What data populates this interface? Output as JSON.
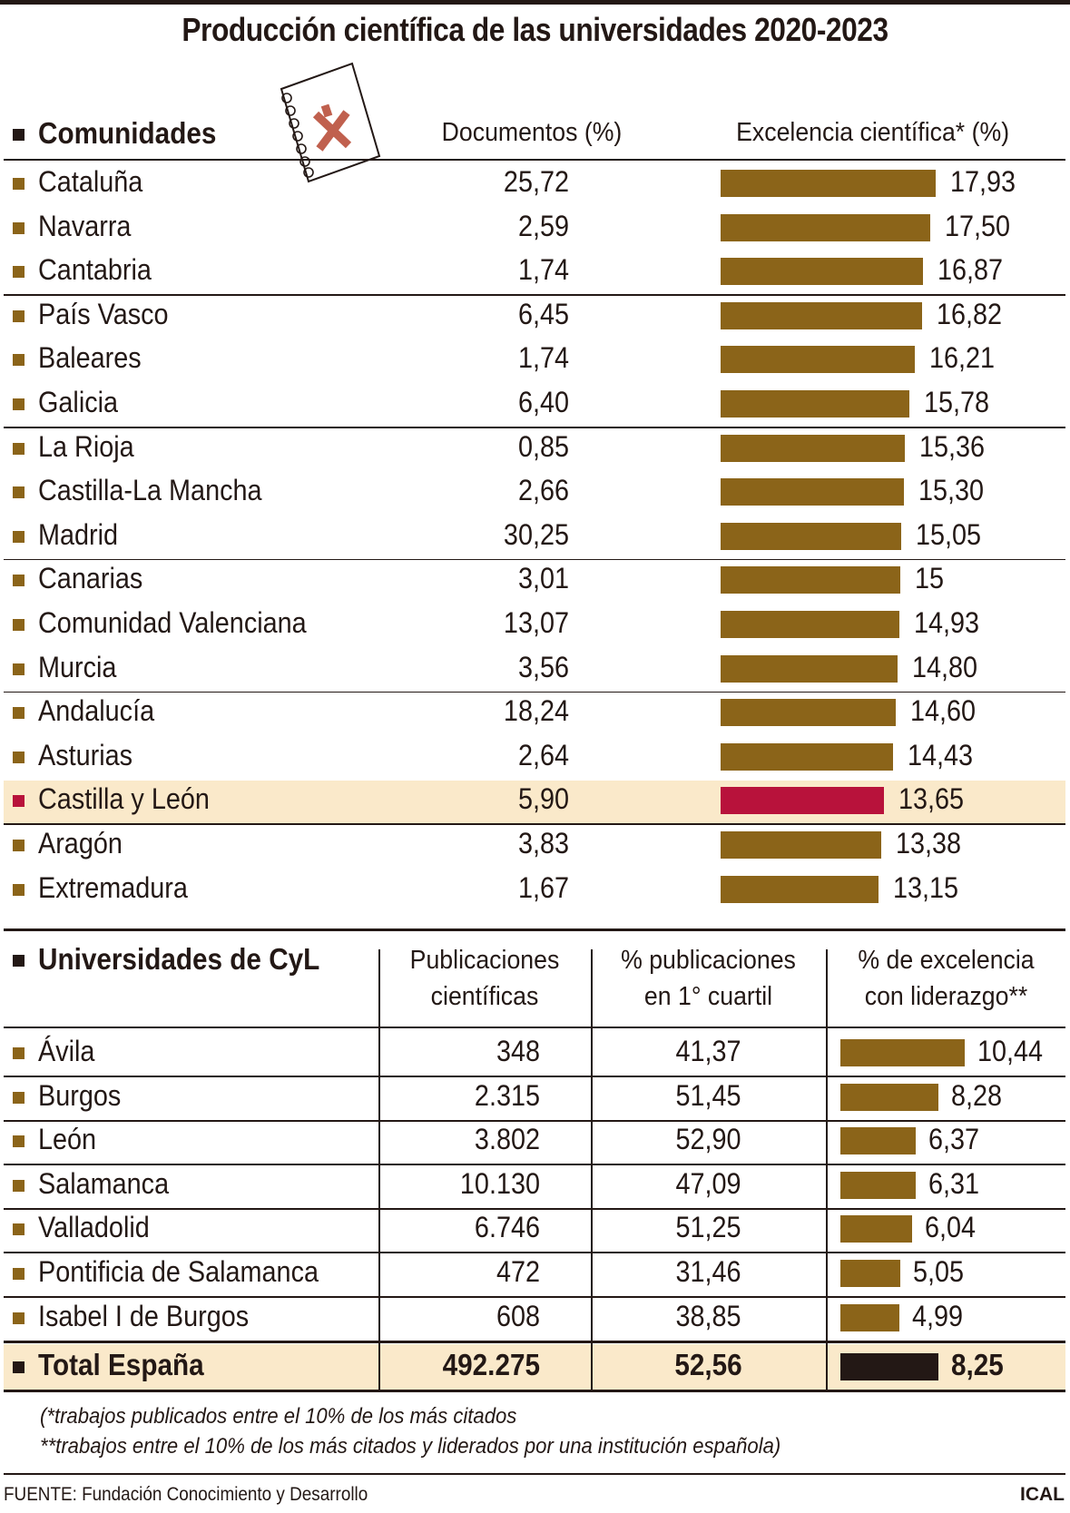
{
  "title": "Producción científica de las universidades 2020-2023",
  "colors": {
    "bar": "#8b6419",
    "highlight_bar": "#b8123b",
    "highlight_row": "#fae9ca",
    "total_bar": "#231815",
    "text": "#231815",
    "logo": "#c0604e"
  },
  "icon": "notebook-with-castilla-cross-icon",
  "chart_data": [
    {
      "type": "bar",
      "orientation": "horizontal",
      "headers": {
        "group": "Comunidades",
        "documents": "Documentos (%)",
        "excellence": "Excelencia científica* (%)"
      },
      "categories": [
        "Cataluña",
        "Navarra",
        "Cantabria",
        "País Vasco",
        "Baleares",
        "Galicia",
        "La Rioja",
        "Castilla-La Mancha",
        "Madrid",
        "Canarias",
        "Comunidad Valenciana",
        "Murcia",
        "Andalucía",
        "Asturias",
        "Castilla y León",
        "Aragón",
        "Extremadura"
      ],
      "documents": [
        "25,72",
        "2,59",
        "1,74",
        "6,45",
        "1,74",
        "6,40",
        "0,85",
        "2,66",
        "30,25",
        "3,01",
        "13,07",
        "3,56",
        "18,24",
        "2,64",
        "5,90",
        "3,83",
        "1,67"
      ],
      "excellence_labels": [
        "17,93",
        "17,50",
        "16,87",
        "16,82",
        "16,21",
        "15,78",
        "15,36",
        "15,30",
        "15,05",
        "15",
        "14,93",
        "14,80",
        "14,60",
        "14,43",
        "13,65",
        "13,38",
        "13,15"
      ],
      "values": [
        17.93,
        17.5,
        16.87,
        16.82,
        16.21,
        15.78,
        15.36,
        15.3,
        15.05,
        15,
        14.93,
        14.8,
        14.6,
        14.43,
        13.65,
        13.38,
        13.15
      ],
      "highlight": "Castilla y León"
    },
    {
      "type": "table",
      "headers": {
        "group": "Universidades de CyL",
        "pubs": [
          "Publicaciones",
          "científicas"
        ],
        "q1": [
          "% publicaciones",
          "en 1° cuartil"
        ],
        "lead": [
          "% de excelencia",
          "con liderazgo**"
        ]
      },
      "categories": [
        "Ávila",
        "Burgos",
        "León",
        "Salamanca",
        "Valladolid",
        "Pontificia de Salamanca",
        "Isabel I de Burgos"
      ],
      "pubs": [
        "348",
        "2.315",
        "3.802",
        "10.130",
        "6.746",
        "472",
        "608"
      ],
      "q1": [
        "41,37",
        "51,45",
        "52,90",
        "47,09",
        "51,25",
        "31,46",
        "38,85"
      ],
      "lead_labels": [
        "10,44",
        "8,28",
        "6,37",
        "6,31",
        "6,04",
        "5,05",
        "4,99"
      ],
      "values": [
        10.44,
        8.28,
        6.37,
        6.31,
        6.04,
        5.05,
        4.99
      ],
      "total": {
        "label": "Total España",
        "pubs": "492.275",
        "q1": "52,56",
        "lead_label": "8,25",
        "value": 8.25
      }
    }
  ],
  "footnotes": [
    "(*trabajos publicados entre el 10% de los más citados",
    "**trabajos entre el 10% de los más citados y liderados por una institución española)"
  ],
  "source": "FUENTE: Fundación Conocimiento y Desarrollo",
  "credit": "ICAL"
}
